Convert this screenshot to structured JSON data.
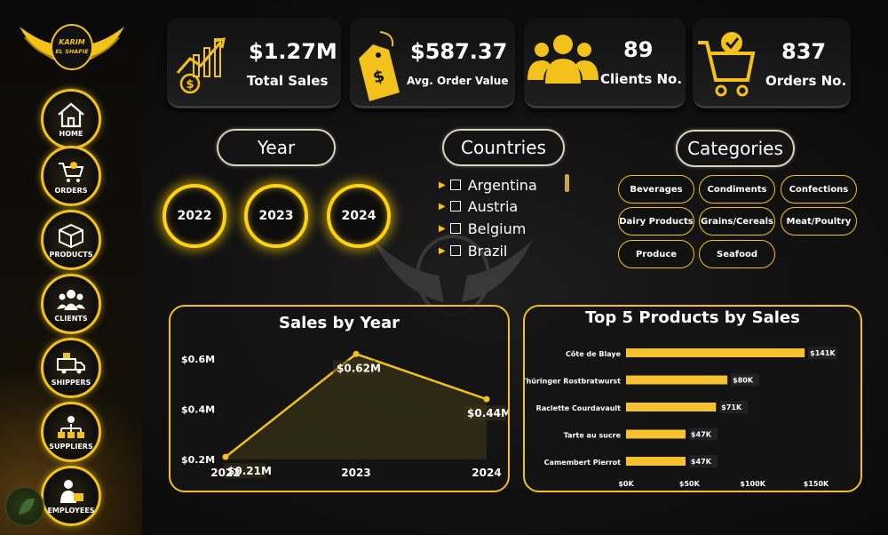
{
  "brand": {
    "line1": "KARIM",
    "line2": "EL SHAFIE"
  },
  "nav": [
    {
      "label": "HOME",
      "icon": "home-icon"
    },
    {
      "label": "ORDERS",
      "icon": "cart-icon"
    },
    {
      "label": "PRODUCTS",
      "icon": "box-icon"
    },
    {
      "label": "CLIENTS",
      "icon": "people-icon"
    },
    {
      "label": "SHIPPERS",
      "icon": "truck-icon"
    },
    {
      "label": "SUPPLIERS",
      "icon": "supplier-icon"
    },
    {
      "label": "EMPLOYEES",
      "icon": "employee-icon"
    }
  ],
  "kpis": {
    "total_sales": {
      "value": "$1.27M",
      "label": "Total Sales"
    },
    "avg_order": {
      "value": "$587.37",
      "label": "Avg. Order Value"
    },
    "clients": {
      "value": "89",
      "label": "Clients No."
    },
    "orders": {
      "value": "837",
      "label": "Orders No."
    }
  },
  "year_slicer": {
    "title": "Year",
    "years": [
      "2022",
      "2023",
      "2024"
    ]
  },
  "country_slicer": {
    "title": "Countries",
    "items": [
      "Argentina",
      "Austria",
      "Belgium",
      "Brazil"
    ]
  },
  "category_slicer": {
    "title": "Categories",
    "items": [
      "Beverages",
      "Condiments",
      "Confections",
      "Dairy Products",
      "Grains/Cereals",
      "Meat/Poultry",
      "Produce",
      "Seafood"
    ]
  },
  "colors": {
    "accent": "#f2c21a",
    "bar": "#f5c12e",
    "background": "#0b0b0b"
  },
  "chart_data": [
    {
      "type": "area",
      "title": "Sales by Year",
      "x": [
        "2022",
        "2023",
        "2024"
      ],
      "y_labels": [
        "$0.21M",
        "$0.62M",
        "$0.44M"
      ],
      "values": [
        0.21,
        0.62,
        0.44
      ],
      "yticks": [
        "$0.2M",
        "$0.4M",
        "$0.6M"
      ],
      "ylim": [
        0.2,
        0.66
      ]
    },
    {
      "type": "bar",
      "title": "Top 5 Products by Sales",
      "categories": [
        "Côte de Blaye",
        "Thüringer Rostbratwurst",
        "Raclette Courdavault",
        "Tarte au sucre",
        "Camembert Pierrot"
      ],
      "values": [
        141,
        80,
        71,
        47,
        47
      ],
      "value_labels": [
        "$141K",
        "$80K",
        "$71K",
        "$47K",
        "$47K"
      ],
      "xticks": [
        "$0K",
        "$50K",
        "$100K",
        "$150K"
      ],
      "xlim": [
        0,
        150
      ]
    }
  ]
}
